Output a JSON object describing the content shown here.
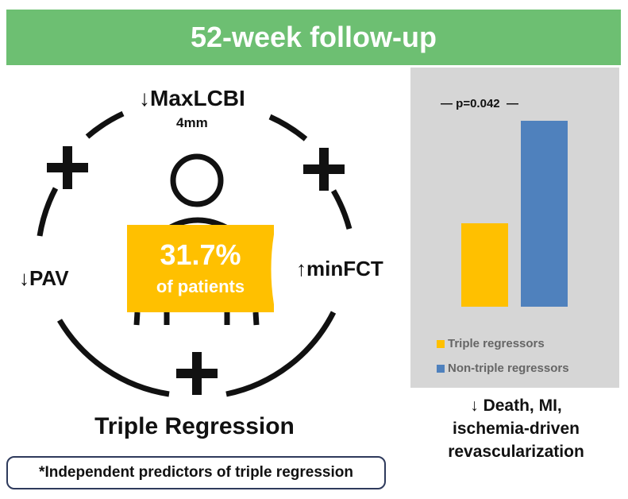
{
  "banner": {
    "title": "52-week follow-up"
  },
  "diagram": {
    "top_label": "↓MaxLCBI",
    "top_sublabel": "4mm",
    "left_label": "↓PAV",
    "right_label": "↑minFCT",
    "percent": "31.7%",
    "percent_caption": "of patients",
    "title": "Triple Regression",
    "note": "*Independent predictors of triple regression"
  },
  "chart_data": {
    "type": "bar",
    "categories": [
      "Triple regressors",
      "Non-triple regressors"
    ],
    "values": [
      45,
      100
    ],
    "value_note": "relative heights, no axis shown",
    "annotation": "p=0.042",
    "colors": [
      "#ffc000",
      "#4f81bd"
    ],
    "legend": [
      "Triple regressors",
      "Non-triple regressors"
    ],
    "legend_position": "bottom",
    "ylim": [
      0,
      100
    ]
  },
  "outcome": {
    "line1": "↓ Death, MI,",
    "line2": "ischemia-driven",
    "line3": "revascularization"
  }
}
